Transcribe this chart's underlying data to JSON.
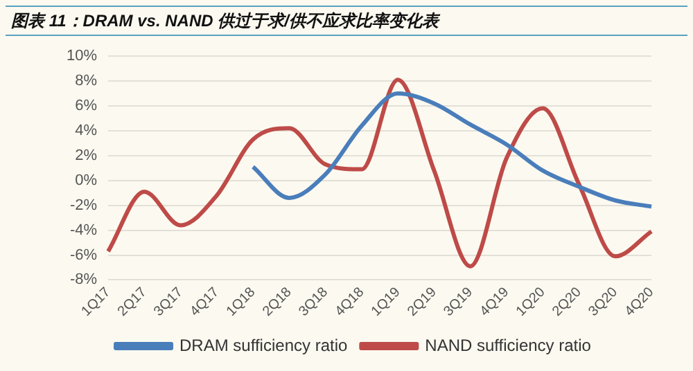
{
  "chart_data": {
    "type": "line",
    "title": "图表 11：DRAM vs. NAND 供过于求/供不应求比率变化表",
    "categories": [
      "1Q17",
      "2Q17",
      "3Q17",
      "4Q17",
      "1Q18",
      "2Q18",
      "3Q18",
      "4Q18",
      "1Q19",
      "2Q19",
      "3Q19",
      "4Q19",
      "1Q20",
      "2Q20",
      "3Q20",
      "4Q20"
    ],
    "series": [
      {
        "name": "DRAM sufficiency ratio",
        "color": "#4a7ebb",
        "values": [
          null,
          null,
          null,
          null,
          1.1,
          -1.4,
          0.5,
          4.4,
          7.0,
          6.2,
          4.5,
          2.9,
          0.8,
          -0.5,
          -1.6,
          -2.1
        ]
      },
      {
        "name": "NAND sufficiency ratio",
        "color": "#be4b48",
        "values": [
          -5.7,
          -0.9,
          -3.6,
          -1.2,
          3.3,
          4.2,
          1.3,
          0.9,
          8.1,
          0.8,
          -6.9,
          1.8,
          5.8,
          -0.3,
          -6.1,
          -4.1
        ]
      }
    ],
    "ylim": [
      -8,
      10
    ],
    "yticks": [
      {
        "value": -8,
        "label": "-8%"
      },
      {
        "value": -6,
        "label": "-6%"
      },
      {
        "value": -4,
        "label": "-4%"
      },
      {
        "value": -2,
        "label": "-2%"
      },
      {
        "value": 0,
        "label": "0%"
      },
      {
        "value": 2,
        "label": "2%"
      },
      {
        "value": 4,
        "label": "4%"
      },
      {
        "value": 6,
        "label": "6%"
      },
      {
        "value": 8,
        "label": "8%"
      },
      {
        "value": 10,
        "label": "10%"
      }
    ],
    "grid": "y",
    "legend": "bottom",
    "marker": "none",
    "line_style": "solid"
  }
}
